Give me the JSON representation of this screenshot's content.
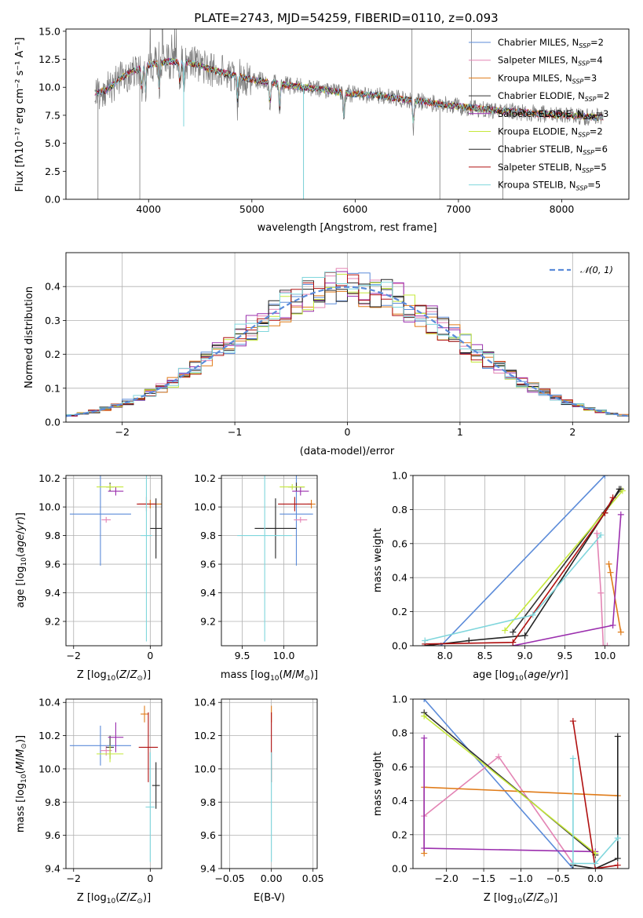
{
  "title": "PLATE=2743, MJD=54259, FIBERID=0110, z=0.093",
  "colors": {
    "chabrier_miles": "#5b8bd9",
    "salpeter_miles": "#e384b4",
    "kroupa_miles": "#e07b18",
    "chabrier_elodie": "#333333",
    "salpeter_elodie": "#9b2fae",
    "kroupa_elodie": "#c5e83a",
    "chabrier_stelib": "#222222",
    "salpeter_stelib": "#b01010",
    "kroupa_stelib": "#7fd6dc",
    "data": "#7a7a7a",
    "normal": "#5b8bd9",
    "grid": "#b0b0b0"
  },
  "chart_data": [
    {
      "id": "spectrum",
      "type": "line",
      "xlabel": "wavelength [Angstrom, rest frame]",
      "ylabel": "Flux [fλ10⁻¹⁷ erg cm⁻² s⁻¹ A⁻¹]",
      "xlim": [
        3200,
        8650
      ],
      "ylim": [
        0,
        15.2
      ],
      "xticks": [
        4000,
        5000,
        6000,
        7000,
        8000
      ],
      "yticks": [
        0.0,
        2.5,
        5.0,
        7.5,
        10.0,
        12.5,
        15.0
      ],
      "grid": false,
      "legend_position": "top-right",
      "legend": [
        {
          "label": "Chabrier MILES, N",
          "sub": "SSP",
          "n": "=2",
          "color": "#5b8bd9"
        },
        {
          "label": "Salpeter MILES, N",
          "sub": "SSP",
          "n": "=4",
          "color": "#e384b4"
        },
        {
          "label": "Kroupa MILES, N",
          "sub": "SSP",
          "n": "=3",
          "color": "#e07b18"
        },
        {
          "label": "Chabrier ELODIE, N",
          "sub": "SSP",
          "n": "=2",
          "color": "#333333"
        },
        {
          "label": "Salpeter ELODIE, N",
          "sub": "SSP",
          "n": "=3",
          "color": "#9b2fae"
        },
        {
          "label": "Kroupa ELODIE, N",
          "sub": "SSP",
          "n": "=2",
          "color": "#c5e83a"
        },
        {
          "label": "Chabrier STELIB, N",
          "sub": "SSP",
          "n": "=6",
          "color": "#222222"
        },
        {
          "label": "Salpeter STELIB, N",
          "sub": "SSP",
          "n": "=5",
          "color": "#b01010"
        },
        {
          "label": "Kroupa STELIB, N",
          "sub": "SSP",
          "n": "=5",
          "color": "#7fd6dc"
        }
      ],
      "continuum_wavelength": [
        3500,
        3600,
        3700,
        3800,
        3900,
        4000,
        4200,
        4400,
        4600,
        4800,
        5000,
        5200,
        5400,
        5600,
        5800,
        6000,
        6200,
        6400,
        6600,
        6800,
        7000,
        7200,
        7400,
        7600,
        7800,
        8000,
        8200,
        8400
      ],
      "continuum_flux": [
        9.5,
        9.8,
        10.6,
        11.2,
        11.6,
        12.0,
        12.3,
        12.2,
        11.6,
        11.1,
        10.7,
        10.4,
        10.1,
        9.9,
        9.6,
        9.4,
        9.3,
        9.0,
        8.8,
        8.5,
        8.3,
        8.1,
        7.9,
        7.8,
        7.6,
        7.5,
        7.4,
        7.3
      ]
    },
    {
      "id": "residual-histogram",
      "type": "area",
      "xlabel": "(data-model)/error",
      "ylabel": "Normed distribution",
      "xlim": [
        -2.5,
        2.5
      ],
      "ylim": [
        0,
        0.5
      ],
      "xticks": [
        -2,
        -1,
        0,
        1,
        2
      ],
      "yticks": [
        0.0,
        0.1,
        0.2,
        0.3,
        0.4
      ],
      "grid": true,
      "legend_position": "top-right",
      "legend_label": "𝒩(0, 1)"
    },
    {
      "id": "age-vs-z",
      "type": "scatter",
      "xlabel": "Z [log₁₀(Z/Z⊙)]",
      "ylabel": "age  [log₁₀(age/yr)]",
      "xlim": [
        -2.2,
        0.3
      ],
      "ylim": [
        9.03,
        10.22
      ],
      "xticks": [
        -2,
        0
      ],
      "yticks": [
        9.2,
        9.4,
        9.6,
        9.8,
        10.0,
        10.2
      ],
      "grid": true,
      "points": [
        {
          "model": "Chabrier MILES",
          "x": -1.3,
          "xerr": 0.8,
          "y": 9.95,
          "yerr": 0.36
        },
        {
          "model": "Salpeter MILES",
          "x": -1.15,
          "xerr": 0.12,
          "y": 9.91,
          "yerr": 0.02
        },
        {
          "model": "Kroupa MILES",
          "x": 0.0,
          "xerr": 0.3,
          "y": 10.02,
          "yerr": 0.03
        },
        {
          "model": "Chabrier ELODIE",
          "x": -1.05,
          "xerr": 0.1,
          "y": 10.14,
          "yerr": 0.03
        },
        {
          "model": "Salpeter ELODIE",
          "x": -0.9,
          "xerr": 0.2,
          "y": 10.11,
          "yerr": 0.03
        },
        {
          "model": "Kroupa ELODIE",
          "x": -1.05,
          "xerr": 0.35,
          "y": 10.14,
          "yerr": 0.02
        },
        {
          "model": "Chabrier STELIB",
          "x": 0.15,
          "xerr": 0.15,
          "y": 9.85,
          "yerr": 0.21
        },
        {
          "model": "Salpeter STELIB",
          "x": -0.1,
          "xerr": 0.25,
          "y": 10.02,
          "yerr": 0.05
        },
        {
          "model": "Kroupa STELIB",
          "x": -0.1,
          "xerr": 0.15,
          "y": 9.8,
          "yerr": 0.74
        }
      ]
    },
    {
      "id": "age-vs-mass",
      "type": "scatter",
      "xlabel": "mass [log₁₀(M/M⊙)]",
      "ylabel": "",
      "xlim": [
        9.25,
        10.4
      ],
      "ylim": [
        9.03,
        10.22
      ],
      "xticks": [
        9.5,
        10.0
      ],
      "yticks": [
        9.2,
        9.4,
        9.6,
        9.8,
        10.0,
        10.2
      ],
      "grid": true,
      "points": [
        {
          "model": "Chabrier MILES",
          "x": 10.15,
          "xerr": 0.2,
          "y": 9.95,
          "yerr": 0.36
        },
        {
          "model": "Salpeter MILES",
          "x": 10.2,
          "xerr": 0.08,
          "y": 9.91,
          "yerr": 0.02
        },
        {
          "model": "Kroupa MILES",
          "x": 10.33,
          "xerr": 0.05,
          "y": 10.02,
          "yerr": 0.03
        },
        {
          "model": "Chabrier ELODIE",
          "x": 10.15,
          "xerr": 0.1,
          "y": 10.14,
          "yerr": 0.03
        },
        {
          "model": "Salpeter ELODIE",
          "x": 10.2,
          "xerr": 0.1,
          "y": 10.11,
          "yerr": 0.03
        },
        {
          "model": "Kroupa ELODIE",
          "x": 10.1,
          "xerr": 0.15,
          "y": 10.14,
          "yerr": 0.02
        },
        {
          "model": "Chabrier STELIB",
          "x": 9.9,
          "xerr": 0.25,
          "y": 9.85,
          "yerr": 0.21
        },
        {
          "model": "Salpeter STELIB",
          "x": 10.13,
          "xerr": 0.2,
          "y": 10.02,
          "yerr": 0.05
        },
        {
          "model": "Kroupa STELIB",
          "x": 9.77,
          "xerr": 0.33,
          "y": 9.8,
          "yerr": 0.74
        }
      ]
    },
    {
      "id": "mass-weight-vs-age",
      "type": "line",
      "xlabel": "age  [log₁₀(age/yr)]",
      "ylabel": "mass weight",
      "xlim": [
        7.6,
        10.3
      ],
      "ylim": [
        0,
        1
      ],
      "xticks": [
        8.0,
        8.5,
        9.0,
        9.5,
        10.0
      ],
      "yticks": [
        0.0,
        0.2,
        0.4,
        0.6,
        0.8,
        1.0
      ],
      "grid": true,
      "series": [
        {
          "name": "Chabrier MILES",
          "x": [
            7.95,
            10.0
          ],
          "y": [
            0.0,
            1.0
          ]
        },
        {
          "name": "Salpeter MILES",
          "x": [
            9.9,
            9.95,
            9.98,
            10.03
          ],
          "y": [
            0.66,
            0.31,
            0.0,
            0.0
          ]
        },
        {
          "name": "Kroupa MILES",
          "x": [
            10.05,
            10.07,
            10.2
          ],
          "y": [
            0.48,
            0.43,
            0.08
          ]
        },
        {
          "name": "Chabrier ELODIE",
          "x": [
            8.85,
            10.2
          ],
          "y": [
            0.08,
            0.92
          ]
        },
        {
          "name": "Salpeter ELODIE",
          "x": [
            8.85,
            10.1,
            10.2
          ],
          "y": [
            0.0,
            0.12,
            0.77
          ]
        },
        {
          "name": "Kroupa ELODIE",
          "x": [
            8.75,
            10.22
          ],
          "y": [
            0.09,
            0.91
          ]
        },
        {
          "name": "Chabrier STELIB",
          "x": [
            7.75,
            8.3,
            9.0,
            10.0,
            10.18
          ],
          "y": [
            0.0,
            0.03,
            0.06,
            0.78,
            0.92
          ]
        },
        {
          "name": "Salpeter STELIB",
          "x": [
            7.75,
            8.85,
            10.0,
            10.1
          ],
          "y": [
            0.01,
            0.02,
            0.78,
            0.87
          ]
        },
        {
          "name": "Kroupa STELIB",
          "x": [
            7.75,
            9.1,
            9.95
          ],
          "y": [
            0.03,
            0.18,
            0.65
          ]
        }
      ]
    },
    {
      "id": "mass-vs-z",
      "type": "scatter",
      "xlabel": "Z [log₁₀(Z/Z⊙)]",
      "ylabel": "mass [log₁₀(M/M⊙)]",
      "xlim": [
        -2.2,
        0.3
      ],
      "ylim": [
        9.4,
        10.42
      ],
      "xticks": [
        -2,
        0
      ],
      "yticks": [
        9.4,
        9.6,
        9.8,
        10.0,
        10.2,
        10.4
      ],
      "grid": true,
      "points": [
        {
          "model": "Chabrier MILES",
          "x": -1.3,
          "xerr": 0.8,
          "y": 10.14,
          "yerr": 0.12
        },
        {
          "model": "Salpeter MILES",
          "x": -1.15,
          "xerr": 0.15,
          "y": 10.11,
          "yerr": 0.03
        },
        {
          "model": "Kroupa MILES",
          "x": -0.15,
          "xerr": 0.1,
          "y": 10.33,
          "yerr": 0.05
        },
        {
          "model": "Chabrier ELODIE",
          "x": -1.05,
          "xerr": 0.1,
          "y": 10.13,
          "yerr": 0.07
        },
        {
          "model": "Salpeter ELODIE",
          "x": -0.9,
          "xerr": 0.2,
          "y": 10.19,
          "yerr": 0.09
        },
        {
          "model": "Kroupa ELODIE",
          "x": -1.05,
          "xerr": 0.35,
          "y": 10.09,
          "yerr": 0.05
        },
        {
          "model": "Chabrier STELIB",
          "x": 0.15,
          "xerr": 0.1,
          "y": 9.9,
          "yerr": 0.14
        },
        {
          "model": "Salpeter STELIB",
          "x": -0.05,
          "xerr": 0.25,
          "y": 10.13,
          "yerr": 0.21
        },
        {
          "model": "Kroupa STELIB",
          "x": 0.0,
          "xerr": 0.12,
          "y": 9.77,
          "yerr": 0.33
        }
      ]
    },
    {
      "id": "mass-vs-ebv",
      "type": "scatter",
      "xlabel": "E(B-V)",
      "ylabel": "",
      "xlim": [
        -0.06,
        0.055
      ],
      "ylim": [
        9.4,
        10.42
      ],
      "xticks": [
        -0.05,
        0.0,
        0.05
      ],
      "xticklabels": [
        "−0.05",
        "0.00",
        "0.05"
      ],
      "yticks": [
        9.4,
        9.6,
        9.8,
        10.0,
        10.2,
        10.4
      ],
      "grid": true,
      "points": [
        {
          "model": "Kroupa MILES",
          "x": 0.0,
          "y": 10.33,
          "yerr": 0.05
        },
        {
          "model": "Salpeter STELIB",
          "x": 0.0,
          "y": 10.13,
          "yerr": 0.21
        },
        {
          "model": "Kroupa STELIB",
          "x": 0.0,
          "y": 9.77,
          "yerr": 0.33
        }
      ]
    },
    {
      "id": "mass-weight-vs-z",
      "type": "line",
      "xlabel": "Z [log₁₀(Z/Z⊙)]",
      "ylabel": "mass weight",
      "xlim": [
        -2.45,
        0.45
      ],
      "ylim": [
        0,
        1
      ],
      "xticks": [
        -2.0,
        -1.5,
        -1.0,
        -0.5,
        0.0
      ],
      "yticks": [
        0.0,
        0.2,
        0.4,
        0.6,
        0.8,
        1.0
      ],
      "grid": true,
      "series": [
        {
          "name": "Chabrier MILES",
          "x": [
            -2.3,
            -0.3
          ],
          "y": [
            1.0,
            0.0
          ]
        },
        {
          "name": "Salpeter MILES",
          "x": [
            -2.3,
            -1.3,
            -0.3
          ],
          "y": [
            0.31,
            0.66,
            0.03
          ]
        },
        {
          "name": "Kroupa MILES",
          "x": [
            -2.3,
            -2.3,
            0.3
          ],
          "y": [
            0.09,
            0.48,
            0.43
          ]
        },
        {
          "name": "Chabrier ELODIE",
          "x": [
            -2.3,
            0.0
          ],
          "y": [
            0.92,
            0.08
          ]
        },
        {
          "name": "Salpeter ELODIE",
          "x": [
            -2.3,
            -2.3,
            0.0
          ],
          "y": [
            0.77,
            0.12,
            0.1
          ]
        },
        {
          "name": "Kroupa ELODIE",
          "x": [
            -2.3,
            0.0
          ],
          "y": [
            0.9,
            0.09
          ]
        },
        {
          "name": "Chabrier STELIB",
          "x": [
            -0.3,
            0.0,
            0.3,
            0.3
          ],
          "y": [
            0.02,
            0.0,
            0.06,
            0.78
          ]
        },
        {
          "name": "Salpeter STELIB",
          "x": [
            -0.3,
            0.0,
            0.3
          ],
          "y": [
            0.87,
            0.0,
            0.02
          ]
        },
        {
          "name": "Kroupa STELIB",
          "x": [
            -0.3,
            -0.3,
            0.0,
            0.3
          ],
          "y": [
            0.65,
            0.03,
            0.03,
            0.18
          ]
        }
      ]
    }
  ]
}
